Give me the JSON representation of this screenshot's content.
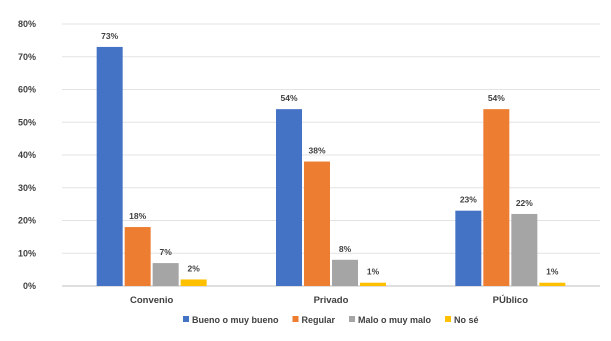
{
  "chart_data": {
    "type": "bar",
    "categories": [
      "Convenio",
      "Privado",
      "PÚblico"
    ],
    "series": [
      {
        "name": "Bueno o muy bueno",
        "color": "#4472C4",
        "values": [
          73,
          54,
          23
        ],
        "labels": [
          "73%",
          "54%",
          "23%"
        ]
      },
      {
        "name": "Regular",
        "color": "#ED7D31",
        "values": [
          18,
          38,
          54
        ],
        "labels": [
          "18%",
          "38%",
          "54%"
        ]
      },
      {
        "name": "Malo o muy malo",
        "color": "#A5A5A5",
        "values": [
          7,
          8,
          22
        ],
        "labels": [
          "7%",
          "8%",
          "22%"
        ]
      },
      {
        "name": "No sé",
        "color": "#FFC000",
        "values": [
          2,
          1,
          1
        ],
        "labels": [
          "2%",
          "1%",
          "1%"
        ]
      }
    ],
    "ylim": [
      0,
      80
    ],
    "yticks": [
      "0%",
      "10%",
      "20%",
      "30%",
      "40%",
      "50%",
      "60%",
      "70%",
      "80%"
    ],
    "grid": true,
    "legend_position": "bottom"
  }
}
